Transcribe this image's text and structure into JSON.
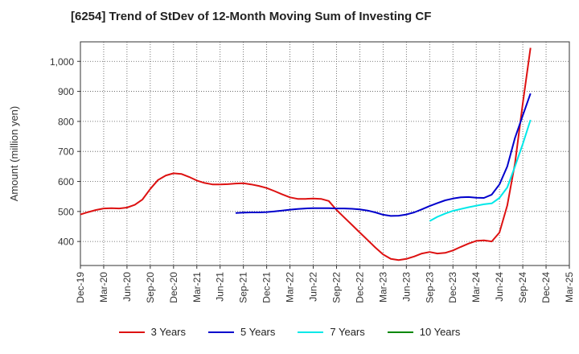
{
  "chart_data": {
    "type": "line",
    "title": "[6254]  Trend of StDev of 12-Month Moving Sum of Investing CF",
    "ylabel": "Amount (million yen)",
    "xlabel": "",
    "ylim": [
      320,
      1065
    ],
    "yticks": [
      400,
      500,
      600,
      700,
      800,
      900,
      1000
    ],
    "ytick_labels": [
      "400",
      "500",
      "600",
      "700",
      "800",
      "900",
      "1,000"
    ],
    "x_range": [
      "2019-12",
      "2025-03"
    ],
    "x_ticks": [
      "Dec-19",
      "Mar-20",
      "Jun-20",
      "Sep-20",
      "Dec-20",
      "Mar-21",
      "Jun-21",
      "Sep-21",
      "Dec-21",
      "Mar-22",
      "Jun-22",
      "Sep-22",
      "Dec-22",
      "Mar-23",
      "Jun-23",
      "Sep-23",
      "Dec-23",
      "Mar-24",
      "Jun-24",
      "Sep-24",
      "Dec-24",
      "Mar-25"
    ],
    "grid": true,
    "legend_position": "bottom",
    "series": [
      {
        "name": "3 Years",
        "color": "#dd1111",
        "points": [
          [
            "2019-12",
            490
          ],
          [
            "2020-01",
            498
          ],
          [
            "2020-02",
            505
          ],
          [
            "2020-03",
            510
          ],
          [
            "2020-04",
            511
          ],
          [
            "2020-05",
            510
          ],
          [
            "2020-06",
            513
          ],
          [
            "2020-07",
            522
          ],
          [
            "2020-08",
            540
          ],
          [
            "2020-09",
            575
          ],
          [
            "2020-10",
            605
          ],
          [
            "2020-11",
            620
          ],
          [
            "2020-12",
            627
          ],
          [
            "2021-01",
            625
          ],
          [
            "2021-02",
            615
          ],
          [
            "2021-03",
            603
          ],
          [
            "2021-04",
            595
          ],
          [
            "2021-05",
            590
          ],
          [
            "2021-06",
            590
          ],
          [
            "2021-07",
            591
          ],
          [
            "2021-08",
            593
          ],
          [
            "2021-09",
            594
          ],
          [
            "2021-10",
            590
          ],
          [
            "2021-11",
            585
          ],
          [
            "2021-12",
            578
          ],
          [
            "2022-01",
            568
          ],
          [
            "2022-02",
            557
          ],
          [
            "2022-03",
            547
          ],
          [
            "2022-04",
            542
          ],
          [
            "2022-05",
            542
          ],
          [
            "2022-06",
            543
          ],
          [
            "2022-07",
            542
          ],
          [
            "2022-08",
            535
          ],
          [
            "2022-09",
            505
          ],
          [
            "2022-10",
            480
          ],
          [
            "2022-11",
            455
          ],
          [
            "2022-12",
            430
          ],
          [
            "2023-01",
            405
          ],
          [
            "2023-02",
            380
          ],
          [
            "2023-03",
            357
          ],
          [
            "2023-04",
            342
          ],
          [
            "2023-05",
            338
          ],
          [
            "2023-06",
            342
          ],
          [
            "2023-07",
            350
          ],
          [
            "2023-08",
            360
          ],
          [
            "2023-09",
            365
          ],
          [
            "2023-10",
            360
          ],
          [
            "2023-11",
            362
          ],
          [
            "2023-12",
            370
          ],
          [
            "2024-01",
            382
          ],
          [
            "2024-02",
            393
          ],
          [
            "2024-03",
            402
          ],
          [
            "2024-04",
            404
          ],
          [
            "2024-05",
            400
          ],
          [
            "2024-06",
            430
          ],
          [
            "2024-07",
            520
          ],
          [
            "2024-08",
            660
          ],
          [
            "2024-09",
            860
          ],
          [
            "2024-10",
            1045
          ]
        ]
      },
      {
        "name": "5 Years",
        "color": "#0000cc",
        "points": [
          [
            "2021-08",
            495
          ],
          [
            "2021-09",
            496
          ],
          [
            "2021-10",
            497
          ],
          [
            "2021-11",
            497
          ],
          [
            "2021-12",
            498
          ],
          [
            "2022-01",
            500
          ],
          [
            "2022-02",
            503
          ],
          [
            "2022-03",
            506
          ],
          [
            "2022-04",
            508
          ],
          [
            "2022-05",
            510
          ],
          [
            "2022-06",
            511
          ],
          [
            "2022-07",
            511
          ],
          [
            "2022-08",
            511
          ],
          [
            "2022-09",
            510
          ],
          [
            "2022-10",
            510
          ],
          [
            "2022-11",
            509
          ],
          [
            "2022-12",
            507
          ],
          [
            "2023-01",
            503
          ],
          [
            "2023-02",
            497
          ],
          [
            "2023-03",
            489
          ],
          [
            "2023-04",
            485
          ],
          [
            "2023-05",
            486
          ],
          [
            "2023-06",
            490
          ],
          [
            "2023-07",
            497
          ],
          [
            "2023-08",
            507
          ],
          [
            "2023-09",
            518
          ],
          [
            "2023-10",
            528
          ],
          [
            "2023-11",
            537
          ],
          [
            "2023-12",
            543
          ],
          [
            "2024-01",
            547
          ],
          [
            "2024-02",
            548
          ],
          [
            "2024-03",
            546
          ],
          [
            "2024-04",
            545
          ],
          [
            "2024-05",
            556
          ],
          [
            "2024-06",
            590
          ],
          [
            "2024-07",
            650
          ],
          [
            "2024-08",
            745
          ],
          [
            "2024-09",
            820
          ],
          [
            "2024-10",
            893
          ]
        ]
      },
      {
        "name": "7 Years",
        "color": "#00e8e8",
        "points": [
          [
            "2023-09",
            468
          ],
          [
            "2023-10",
            482
          ],
          [
            "2023-11",
            493
          ],
          [
            "2023-12",
            502
          ],
          [
            "2024-01",
            508
          ],
          [
            "2024-02",
            514
          ],
          [
            "2024-03",
            519
          ],
          [
            "2024-04",
            524
          ],
          [
            "2024-05",
            527
          ],
          [
            "2024-06",
            545
          ],
          [
            "2024-07",
            580
          ],
          [
            "2024-08",
            650
          ],
          [
            "2024-09",
            725
          ],
          [
            "2024-10",
            805
          ]
        ]
      },
      {
        "name": "10 Years",
        "color": "#008800",
        "points": []
      }
    ]
  }
}
